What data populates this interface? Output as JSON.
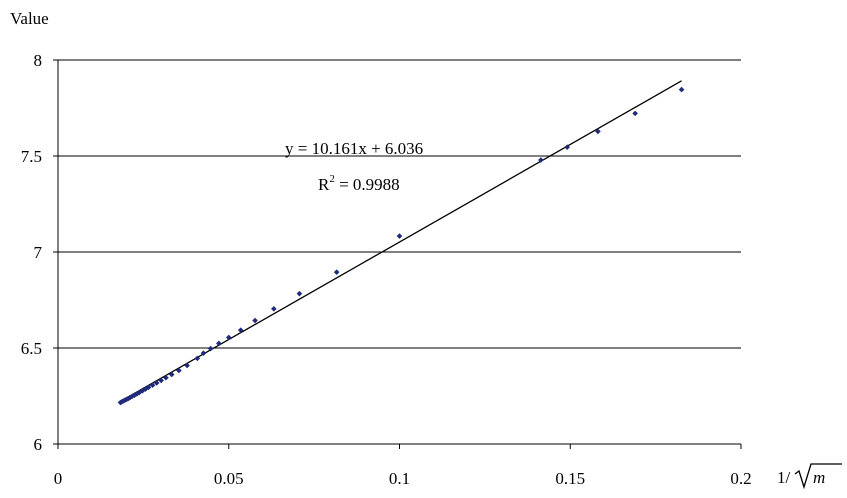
{
  "chart_data": {
    "type": "scatter",
    "title": "",
    "ylabel": "Value",
    "xlabel_prefix": "1/",
    "xlabel_radicand": "m",
    "xlim": [
      0,
      0.2
    ],
    "ylim": [
      6,
      8
    ],
    "xticks": [
      0,
      0.05,
      0.1,
      0.15,
      0.2
    ],
    "xtick_labels": [
      "0",
      "0.05",
      "0.1",
      "0.15",
      "0.2"
    ],
    "yticks": [
      6,
      6.5,
      7,
      7.5,
      8
    ],
    "ytick_labels": [
      "6",
      "6.5",
      "7",
      "7.5",
      "8"
    ],
    "grid": "horizontal",
    "marker_color": "#1f2a7a",
    "points": [
      {
        "x": 0.0183,
        "y": 6.216
      },
      {
        "x": 0.0187,
        "y": 6.22
      },
      {
        "x": 0.0191,
        "y": 6.224
      },
      {
        "x": 0.0196,
        "y": 6.228
      },
      {
        "x": 0.0201,
        "y": 6.233
      },
      {
        "x": 0.0206,
        "y": 6.237
      },
      {
        "x": 0.0211,
        "y": 6.242
      },
      {
        "x": 0.0217,
        "y": 6.248
      },
      {
        "x": 0.0224,
        "y": 6.254
      },
      {
        "x": 0.0231,
        "y": 6.261
      },
      {
        "x": 0.0238,
        "y": 6.268
      },
      {
        "x": 0.0247,
        "y": 6.277
      },
      {
        "x": 0.0256,
        "y": 6.286
      },
      {
        "x": 0.0265,
        "y": 6.295
      },
      {
        "x": 0.0277,
        "y": 6.306
      },
      {
        "x": 0.0289,
        "y": 6.318
      },
      {
        "x": 0.0302,
        "y": 6.331
      },
      {
        "x": 0.0316,
        "y": 6.345
      },
      {
        "x": 0.0333,
        "y": 6.362
      },
      {
        "x": 0.0354,
        "y": 6.383
      },
      {
        "x": 0.0378,
        "y": 6.409
      },
      {
        "x": 0.0408,
        "y": 6.446
      },
      {
        "x": 0.0426,
        "y": 6.473
      },
      {
        "x": 0.0447,
        "y": 6.497
      },
      {
        "x": 0.0471,
        "y": 6.524
      },
      {
        "x": 0.05,
        "y": 6.555
      },
      {
        "x": 0.0535,
        "y": 6.593
      },
      {
        "x": 0.0577,
        "y": 6.643
      },
      {
        "x": 0.0632,
        "y": 6.704
      },
      {
        "x": 0.0707,
        "y": 6.783
      },
      {
        "x": 0.0816,
        "y": 6.895
      },
      {
        "x": 0.1,
        "y": 7.083
      },
      {
        "x": 0.1414,
        "y": 7.479
      },
      {
        "x": 0.1491,
        "y": 7.546
      },
      {
        "x": 0.1581,
        "y": 7.628
      },
      {
        "x": 0.169,
        "y": 7.722
      },
      {
        "x": 0.1826,
        "y": 7.846
      }
    ],
    "trendline": {
      "slope": 10.161,
      "intercept": 6.036,
      "x_range": [
        0.018,
        0.1826
      ],
      "equation_label": "y = 10.161x + 6.036",
      "r2_base": "R",
      "r2_exponent": "2",
      "r2_value": " = 0.9988"
    }
  }
}
